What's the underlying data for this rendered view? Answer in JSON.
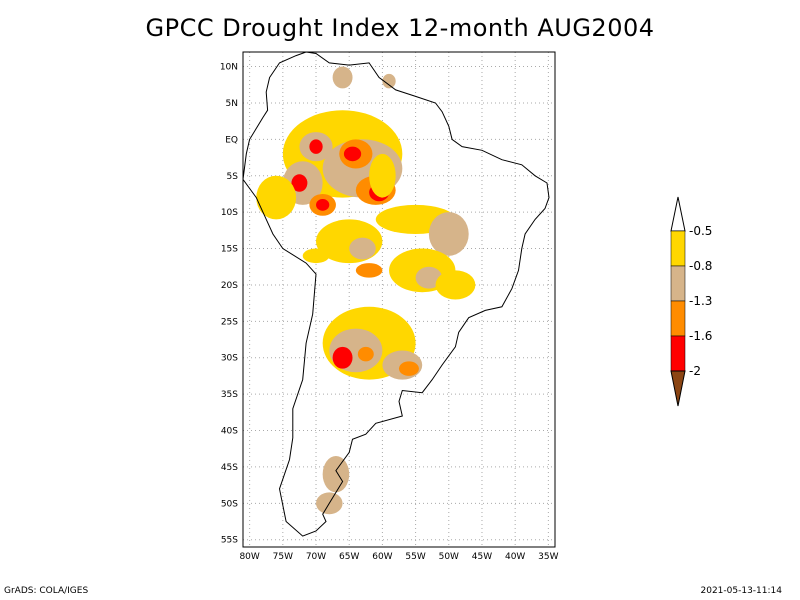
{
  "title": "GPCC Drought Index 12-month AUG2004",
  "map": {
    "region": "South America",
    "lat_ticks": [
      "10N",
      "5N",
      "EQ",
      "5S",
      "10S",
      "15S",
      "20S",
      "25S",
      "30S",
      "35S",
      "40S",
      "45S",
      "50S",
      "55S"
    ],
    "lon_ticks": [
      "80W",
      "75W",
      "70W",
      "65W",
      "60W",
      "55W",
      "50W",
      "45W",
      "40W",
      "35W"
    ],
    "lat_range": [
      -56,
      12
    ],
    "lon_range": [
      -81,
      -34
    ]
  },
  "legend": {
    "entries": [
      {
        "label": "-0.5",
        "color": "#ffd700"
      },
      {
        "label": "-0.8",
        "color": "#d6b48a"
      },
      {
        "label": "-1.3",
        "color": "#ff8c00"
      },
      {
        "label": "-1.6",
        "color": "#ff0000"
      },
      {
        "label": "-2",
        "color": "#8b4513"
      }
    ],
    "top_color": "#ffffff",
    "bottom_color": "#8b4513"
  },
  "footer": {
    "left": "GrADS: COLA/IGES",
    "right": "2021-05-13-11:14"
  }
}
